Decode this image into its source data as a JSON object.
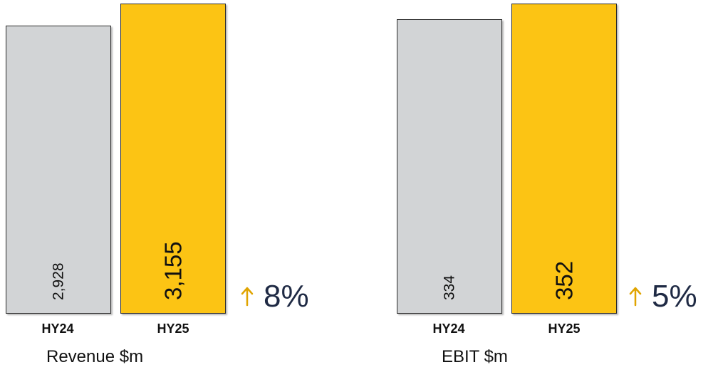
{
  "colors": {
    "prior": "#d2d4d6",
    "current": "#fcc414",
    "arrow": "#e0a400"
  },
  "charts": [
    {
      "title": "Revenue $m",
      "growth": "8%",
      "bar_labels": [
        "2,928",
        "3,155"
      ]
    },
    {
      "title": "EBIT $m",
      "growth": "5%",
      "bar_labels": [
        "334",
        "352"
      ]
    }
  ],
  "chart_data": [
    {
      "type": "bar",
      "title": "Revenue $m",
      "categories": [
        "HY24",
        "HY25"
      ],
      "values": [
        2928,
        3155
      ],
      "ylim": [
        0,
        3155
      ],
      "annotations": [
        "↑ 8%"
      ],
      "grid": false
    },
    {
      "type": "bar",
      "title": "EBIT $m",
      "categories": [
        "HY24",
        "HY25"
      ],
      "values": [
        334,
        352
      ],
      "ylim": [
        0,
        352
      ],
      "annotations": [
        "↑ 5%"
      ],
      "grid": false
    }
  ]
}
